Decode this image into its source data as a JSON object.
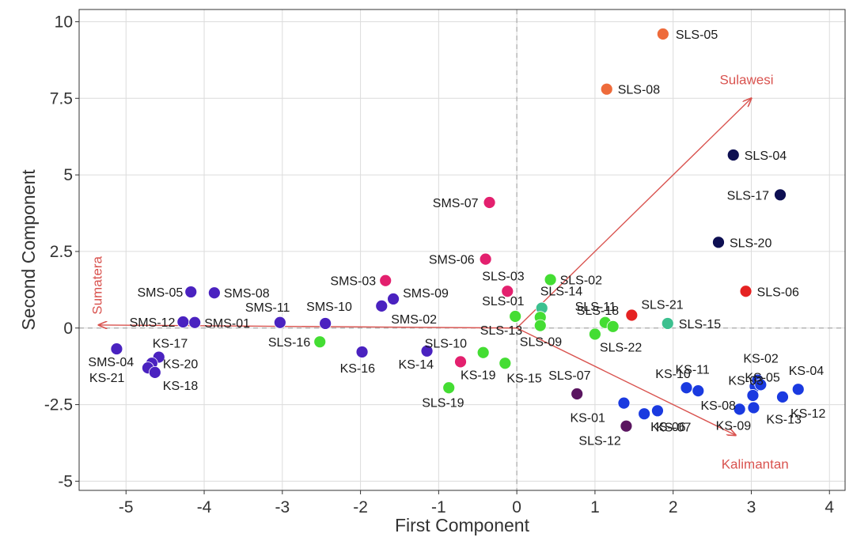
{
  "chart_data": {
    "type": "scatter",
    "xlabel": "First Component",
    "ylabel": "Second Component",
    "xlim": [
      -5.6,
      4.2
    ],
    "ylim": [
      -5.3,
      10.4
    ],
    "xticks": [
      -5,
      -4,
      -3,
      -2,
      -1,
      0,
      1,
      2,
      3,
      4
    ],
    "yticks": [
      -5,
      -2.5,
      0,
      2.5,
      5,
      7.5,
      10
    ],
    "ytick_labels": [
      "-5",
      "-2.5",
      "0",
      "2.5",
      "5",
      "7.5",
      "10"
    ],
    "grid": true,
    "vector_color": "#d9534f",
    "vectors": [
      {
        "name": "Sulawesi",
        "x": 3.0,
        "y": 7.5
      },
      {
        "name": "Sumatera",
        "x": -5.35,
        "y": 0.1
      },
      {
        "name": "Kalimantan",
        "x": 2.8,
        "y": -3.5
      }
    ],
    "points": [
      {
        "label": "SLS-05",
        "x": 1.87,
        "y": 9.6,
        "color": "#ee6b3b"
      },
      {
        "label": "SLS-08",
        "x": 1.15,
        "y": 7.8,
        "color": "#ee6b3b"
      },
      {
        "label": "SLS-04",
        "x": 2.77,
        "y": 5.65,
        "color": "#0d0f52"
      },
      {
        "label": "SLS-17",
        "x": 3.37,
        "y": 4.35,
        "color": "#0d0f52"
      },
      {
        "label": "SLS-20",
        "x": 2.58,
        "y": 2.8,
        "color": "#0d0f52"
      },
      {
        "label": "SLS-06",
        "x": 2.93,
        "y": 1.2,
        "color": "#e52222"
      },
      {
        "label": "SLS-21",
        "x": 1.47,
        "y": 0.42,
        "color": "#e52222"
      },
      {
        "label": "SLS-15",
        "x": 1.93,
        "y": 0.15,
        "color": "#3cc08f"
      },
      {
        "label": "SLS-14",
        "x": 0.32,
        "y": 0.65,
        "color": "#3cc08f"
      },
      {
        "label": "SMS-07",
        "x": -0.35,
        "y": 4.1,
        "color": "#e3206e"
      },
      {
        "label": "SMS-06",
        "x": -0.4,
        "y": 2.25,
        "color": "#e3206e"
      },
      {
        "label": "SMS-03",
        "x": -1.68,
        "y": 1.55,
        "color": "#e3206e"
      },
      {
        "label": "SLS-03",
        "x": -0.12,
        "y": 1.2,
        "color": "#e3206e"
      },
      {
        "label": "KS-19",
        "x": -0.72,
        "y": -1.1,
        "color": "#e3206e"
      },
      {
        "label": "SLS-02",
        "x": 0.43,
        "y": 1.58,
        "color": "#44dd33"
      },
      {
        "label": "SLS-01",
        "x": -0.02,
        "y": 0.38,
        "color": "#44dd33"
      },
      {
        "label": "SLS-13",
        "x": 0.3,
        "y": 0.35,
        "color": "#44dd33"
      },
      {
        "label": "SLS-09",
        "x": 0.3,
        "y": 0.08,
        "color": "#44dd33"
      },
      {
        "label": "SLS-18",
        "x": 1.13,
        "y": 0.18,
        "color": "#44dd33"
      },
      {
        "label": "SLS-11",
        "x": 1.23,
        "y": 0.05,
        "color": "#44dd33"
      },
      {
        "label": "SLS-22",
        "x": 1.0,
        "y": -0.2,
        "color": "#44dd33"
      },
      {
        "label": "SLS-16",
        "x": -2.52,
        "y": -0.45,
        "color": "#44dd33"
      },
      {
        "label": "SLS-10",
        "x": -0.43,
        "y": -0.8,
        "color": "#44dd33"
      },
      {
        "label": "KS-15",
        "x": -0.15,
        "y": -1.15,
        "color": "#44dd33"
      },
      {
        "label": "SLS-19",
        "x": -0.87,
        "y": -1.95,
        "color": "#44dd33"
      },
      {
        "label": "SLS-07",
        "x": 0.77,
        "y": -2.15,
        "color": "#5a1560"
      },
      {
        "label": "SLS-12",
        "x": 1.4,
        "y": -3.2,
        "color": "#5a1560"
      },
      {
        "label": "SMS-05",
        "x": -4.17,
        "y": 1.18,
        "color": "#4a22c0"
      },
      {
        "label": "SMS-08",
        "x": -3.87,
        "y": 1.15,
        "color": "#4a22c0"
      },
      {
        "label": "SMS-09",
        "x": -1.58,
        "y": 0.95,
        "color": "#4a22c0"
      },
      {
        "label": "SMS-02",
        "x": -1.73,
        "y": 0.72,
        "color": "#4a22c0"
      },
      {
        "label": "SMS-12",
        "x": -4.27,
        "y": 0.2,
        "color": "#4a22c0"
      },
      {
        "label": "SMS-01",
        "x": -4.12,
        "y": 0.18,
        "color": "#4a22c0"
      },
      {
        "label": "SMS-11",
        "x": -3.03,
        "y": 0.18,
        "color": "#4a22c0"
      },
      {
        "label": "SMS-10",
        "x": -2.45,
        "y": 0.15,
        "color": "#4a22c0"
      },
      {
        "label": "KS-16",
        "x": -1.98,
        "y": -0.78,
        "color": "#4a22c0"
      },
      {
        "label": "KS-14",
        "x": -1.15,
        "y": -0.75,
        "color": "#4a22c0"
      },
      {
        "label": "KS-17",
        "x": -4.58,
        "y": -0.95,
        "color": "#4a22c0"
      },
      {
        "label": "SMS-04",
        "x": -5.12,
        "y": -0.68,
        "color": "#4a22c0"
      },
      {
        "label": "KS-20",
        "x": -4.67,
        "y": -1.15,
        "color": "#4a22c0"
      },
      {
        "label": "KS-21",
        "x": -4.72,
        "y": -1.3,
        "color": "#4a22c0"
      },
      {
        "label": "KS-18",
        "x": -4.63,
        "y": -1.45,
        "color": "#4a22c0"
      },
      {
        "label": "KS-01",
        "x": 1.37,
        "y": -2.45,
        "color": "#1a3ae0"
      },
      {
        "label": "KS-06",
        "x": 1.63,
        "y": -2.8,
        "color": "#1a3ae0"
      },
      {
        "label": "KS-07",
        "x": 1.8,
        "y": -2.7,
        "color": "#1a3ae0"
      },
      {
        "label": "KS-11",
        "x": 2.17,
        "y": -1.95,
        "color": "#1a3ae0"
      },
      {
        "label": "KS-10",
        "x": 2.32,
        "y": -2.05,
        "color": "#1a3ae0"
      },
      {
        "label": "KS-03",
        "x": 3.05,
        "y": -1.9,
        "color": "#1a3ae0"
      },
      {
        "label": "KS-08",
        "x": 3.02,
        "y": -2.2,
        "color": "#1a3ae0"
      },
      {
        "label": "KS-02",
        "x": 3.08,
        "y": -1.7,
        "color": "#1a3ae0"
      },
      {
        "label": "KS-05",
        "x": 3.12,
        "y": -1.85,
        "color": "#1a3ae0"
      },
      {
        "label": "KS-09",
        "x": 2.85,
        "y": -2.65,
        "color": "#1a3ae0"
      },
      {
        "label": "KS-13",
        "x": 3.03,
        "y": -2.6,
        "color": "#1a3ae0"
      },
      {
        "label": "KS-04",
        "x": 3.6,
        "y": -2.0,
        "color": "#1a3ae0"
      },
      {
        "label": "KS-12",
        "x": 3.4,
        "y": -2.25,
        "color": "#1a3ae0"
      }
    ]
  }
}
